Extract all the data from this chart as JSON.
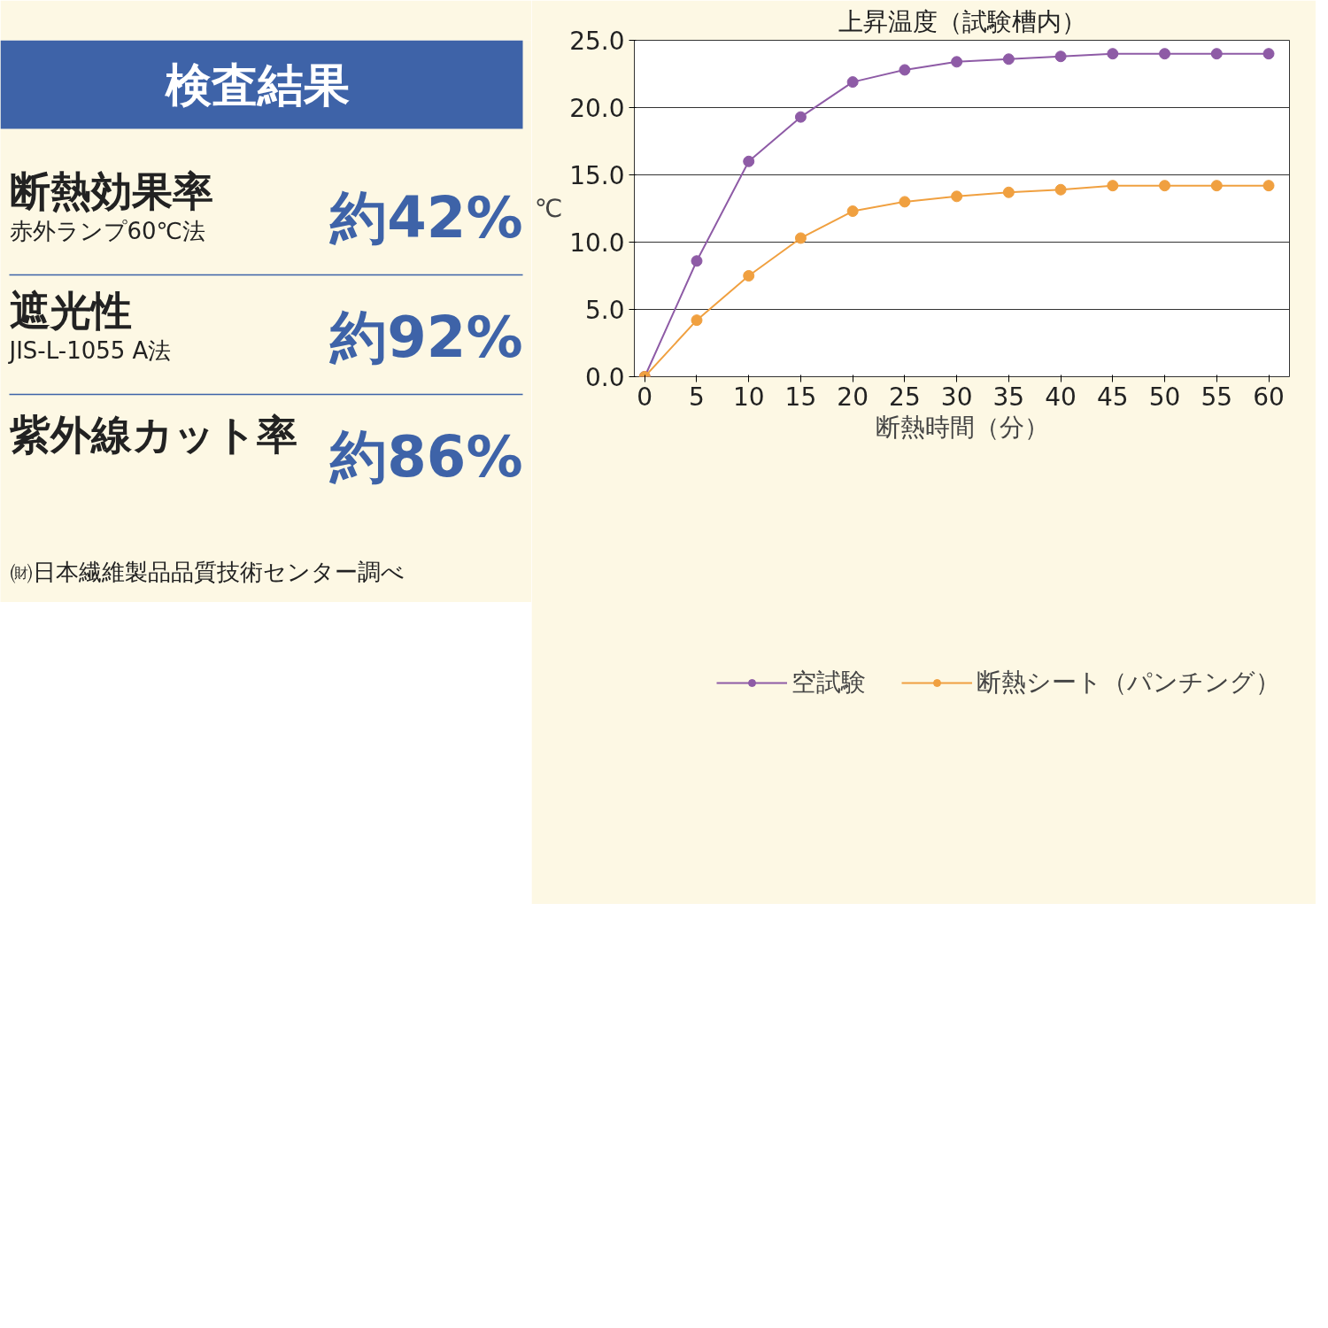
{
  "chart_data": [
    {
      "type": "other",
      "title": "検査結果",
      "annotations": [
        "断熱効果率",
        "赤外ランプ60℃法",
        "約42%",
        "遮光性",
        "JIS-L-1055 A法",
        "約92%",
        "紫外線カット率",
        "約86%",
        "㈶日本繊維製品品質技術センター調べ"
      ]
    },
    {
      "type": "line",
      "title": "上昇温度（試験槽内）",
      "xlabel": "断熱時間（分）",
      "ylabel": "℃",
      "x": [
        0,
        5,
        10,
        15,
        20,
        25,
        30,
        35,
        40,
        45,
        50,
        55,
        60
      ],
      "series": [
        {
          "name": "空試験",
          "color": "#8e5ba6",
          "values": [
            0,
            8.6,
            16.0,
            19.3,
            21.9,
            22.8,
            23.4,
            23.6,
            23.8,
            24.0,
            24.0,
            24.0,
            24.0
          ]
        },
        {
          "name": "断熱シート（パンチング）",
          "color": "#f0a040",
          "values": [
            0,
            4.2,
            7.5,
            10.3,
            12.3,
            13.0,
            13.4,
            13.7,
            13.9,
            14.2,
            14.2,
            14.2,
            14.2
          ]
        }
      ],
      "xlim": [
        -1,
        62
      ],
      "xticks": [
        0,
        5,
        10,
        15,
        20,
        25,
        30,
        35,
        40,
        45,
        50,
        55,
        60
      ],
      "ylim": [
        0,
        25
      ],
      "yticks": [
        {
          "value": 0,
          "label": "0.0"
        },
        {
          "value": 5,
          "label": "5.0"
        },
        {
          "value": 10,
          "label": "10.0"
        },
        {
          "value": 15,
          "label": "15.0"
        },
        {
          "value": 20,
          "label": "20.0"
        },
        {
          "value": 25,
          "label": "25.0"
        }
      ],
      "grid": "y",
      "legend": "bottom",
      "marker": "circle",
      "line_style": "solid"
    }
  ]
}
